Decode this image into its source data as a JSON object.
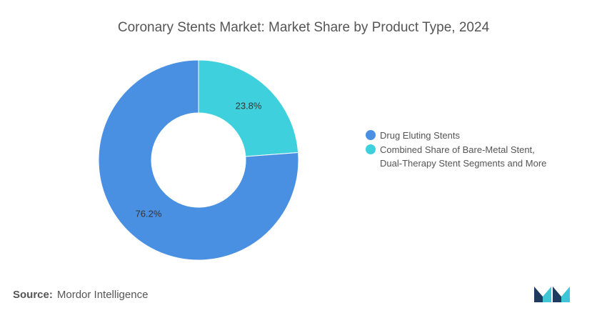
{
  "chart_data": {
    "type": "pie",
    "title": "Coronary Stents Market: Market Share by Product Type, 2024",
    "donut": true,
    "categories": [
      "Drug Eluting Stents",
      "Combined Share of Bare-Metal Stent, Dual-Therapy Stent Segments and More"
    ],
    "values": [
      76.2,
      23.8
    ],
    "value_labels": [
      "76.2%",
      "23.8%"
    ],
    "colors": [
      "#4a90e2",
      "#3ed1dd"
    ],
    "legend_placement": "right"
  },
  "legend": {
    "items": [
      {
        "label": "Drug Eluting Stents",
        "lines": [
          "Drug Eluting Stents"
        ],
        "color": "#4a90e2"
      },
      {
        "label": "Combined Share of Bare-Metal Stent, Dual-Therapy Stent Segments and More",
        "lines": [
          "Combined Share of Bare-Metal Stent,",
          "Dual-Therapy Stent Segments and More"
        ],
        "color": "#3ed1dd"
      }
    ]
  },
  "source": {
    "label": "Source:",
    "text": "Mordor Intelligence"
  },
  "logo": {
    "icon": "mordor-intelligence-logo-icon",
    "color_dark": "#1f3a5f",
    "color_light": "#3ec6d6"
  }
}
